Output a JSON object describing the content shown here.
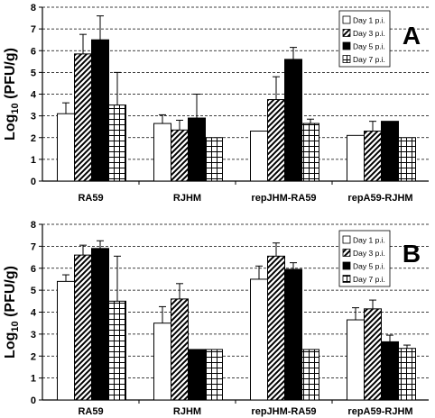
{
  "chart_data": [
    {
      "type": "bar",
      "panel_label": "A",
      "ylabel_prefix": "Log",
      "ylabel_sub": "10",
      "ylabel_suffix": " (PFU/g)",
      "ylim": [
        0,
        8
      ],
      "yticks": [
        "0",
        "1",
        "2",
        "3",
        "4",
        "5",
        "6",
        "7",
        "8"
      ],
      "grid": "horizontal dashed",
      "legend_position": "top-right",
      "categories": [
        "RA59",
        "RJHM",
        "repJHM-RA59",
        "repA59-RJHM"
      ],
      "series": [
        {
          "name": "Day 1 p.i.",
          "pattern": "white",
          "values": [
            3.1,
            2.65,
            2.3,
            2.1
          ],
          "errors": [
            0.5,
            0.4,
            0,
            0
          ]
        },
        {
          "name": "Day 3 p.i.",
          "pattern": "diagonal",
          "values": [
            5.85,
            2.35,
            3.75,
            2.3
          ],
          "errors": [
            0.9,
            0.45,
            1.05,
            0.45
          ]
        },
        {
          "name": "Day 5 p.i.",
          "pattern": "black",
          "values": [
            6.5,
            2.9,
            5.6,
            2.75
          ],
          "errors": [
            1.1,
            1.1,
            0.55,
            0
          ]
        },
        {
          "name": "Day 7 p.i.",
          "pattern": "grid",
          "values": [
            3.5,
            2.0,
            2.65,
            2.0
          ],
          "errors": [
            1.5,
            0,
            0.2,
            0
          ]
        }
      ]
    },
    {
      "type": "bar",
      "panel_label": "B",
      "ylabel_prefix": "Log",
      "ylabel_sub": "10",
      "ylabel_suffix": " (PFU/g)",
      "ylim": [
        0,
        8
      ],
      "yticks": [
        "0",
        "1",
        "2",
        "3",
        "4",
        "5",
        "6",
        "7",
        "8"
      ],
      "grid": "horizontal dashed",
      "legend_position": "top-right",
      "categories": [
        "RA59",
        "RJHM",
        "repJHM-RA59",
        "repA59-RJHM"
      ],
      "series": [
        {
          "name": "Day 1 p.i.",
          "pattern": "white",
          "values": [
            5.4,
            3.5,
            5.5,
            3.65
          ],
          "errors": [
            0.3,
            0.75,
            0.6,
            0.55
          ]
        },
        {
          "name": "Day 3 p.i.",
          "pattern": "diagonal",
          "values": [
            6.6,
            4.6,
            6.55,
            4.15
          ],
          "errors": [
            0.45,
            0.7,
            0.6,
            0.4
          ]
        },
        {
          "name": "Day 5 p.i.",
          "pattern": "black",
          "values": [
            6.9,
            2.3,
            5.95,
            2.65
          ],
          "errors": [
            0.35,
            0,
            0.3,
            0.3
          ]
        },
        {
          "name": "Day 7 p.i.",
          "pattern": "grid",
          "values": [
            4.5,
            2.3,
            2.3,
            2.35
          ],
          "errors": [
            2.05,
            0,
            0,
            0.15
          ]
        }
      ]
    }
  ]
}
